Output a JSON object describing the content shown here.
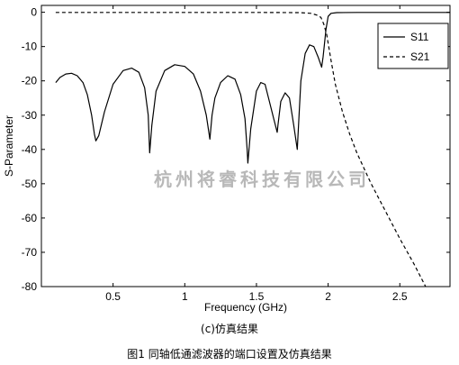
{
  "chart_data": {
    "type": "line",
    "xlabel": "Frequency (GHz)",
    "ylabel": "S-Parameter",
    "xlim": [
      0,
      2.85
    ],
    "ylim": [
      -80,
      2
    ],
    "xticks": [
      "0.5",
      "1",
      "1.5",
      "2",
      "2.5"
    ],
    "xtick_values": [
      0.5,
      1.0,
      1.5,
      2.0,
      2.5
    ],
    "yticks": [
      "0",
      "-10",
      "-20",
      "-30",
      "-40",
      "-50",
      "-60",
      "-70",
      "-80"
    ],
    "ytick_values": [
      0,
      -10,
      -20,
      -30,
      -40,
      -50,
      -60,
      -70,
      -80
    ],
    "grid": false,
    "legend_position": "top-right",
    "series": [
      {
        "name": "S11",
        "style": "solid",
        "color": "#000000",
        "x": [
          0.1,
          0.13,
          0.17,
          0.21,
          0.25,
          0.29,
          0.32,
          0.35,
          0.37,
          0.38,
          0.4,
          0.44,
          0.5,
          0.57,
          0.63,
          0.68,
          0.72,
          0.745,
          0.755,
          0.77,
          0.8,
          0.86,
          0.93,
          1.0,
          1.06,
          1.11,
          1.15,
          1.175,
          1.19,
          1.21,
          1.25,
          1.3,
          1.35,
          1.39,
          1.42,
          1.435,
          1.44,
          1.46,
          1.5,
          1.53,
          1.56,
          1.59,
          1.62,
          1.645,
          1.65,
          1.67,
          1.7,
          1.73,
          1.76,
          1.785,
          1.795,
          1.81,
          1.84,
          1.87,
          1.9,
          1.93,
          1.955,
          1.965,
          1.975,
          1.985,
          1.995,
          2.0,
          2.02,
          2.06,
          2.2,
          2.4,
          2.6,
          2.85
        ],
        "y": [
          -20.5,
          -19.0,
          -18.0,
          -17.8,
          -18.5,
          -20.5,
          -24,
          -30,
          -35.5,
          -37.5,
          -36,
          -29,
          -21,
          -17,
          -16.3,
          -17.5,
          -22,
          -30,
          -41,
          -33,
          -23,
          -17,
          -15.3,
          -15.8,
          -18,
          -23,
          -30,
          -37,
          -30,
          -25,
          -20.5,
          -18.5,
          -19.5,
          -24,
          -31,
          -40,
          -44,
          -34,
          -23,
          -20.5,
          -21,
          -26,
          -31,
          -35,
          -33,
          -26,
          -23.5,
          -25,
          -33,
          -40,
          -32,
          -20,
          -12,
          -9.5,
          -10,
          -13,
          -16,
          -13,
          -9,
          -5,
          -2.5,
          -1.2,
          -0.3,
          -0.1,
          -0.05,
          -0.05,
          -0.05,
          -0.05
        ]
      },
      {
        "name": "S21",
        "style": "dashed",
        "color": "#000000",
        "x": [
          0.1,
          0.5,
          1.0,
          1.5,
          1.8,
          1.88,
          1.92,
          1.95,
          1.97,
          1.99,
          2.0,
          2.02,
          2.05,
          2.1,
          2.15,
          2.2,
          2.3,
          2.4,
          2.5,
          2.6,
          2.68
        ],
        "y": [
          -0.05,
          -0.05,
          -0.05,
          -0.05,
          -0.1,
          -0.3,
          -0.8,
          -1.5,
          -3.5,
          -6.5,
          -9,
          -14,
          -21,
          -29,
          -35.5,
          -41,
          -50,
          -58,
          -66,
          -73.5,
          -80
        ]
      }
    ]
  },
  "watermark": "杭州将睿科技有限公司",
  "subcaption": "(c)仿真结果",
  "caption": "图1 同轴低通滤波器的端口设置及仿真结果"
}
